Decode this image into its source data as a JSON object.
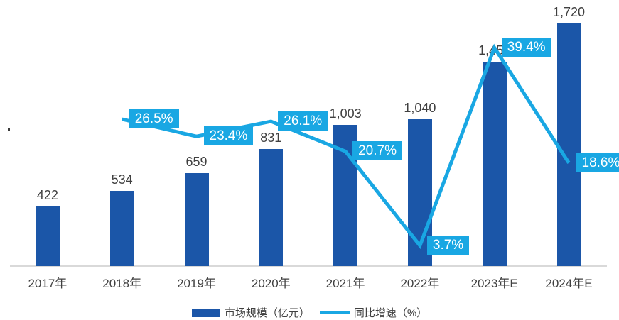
{
  "chart_data": {
    "type": "bar",
    "title": "",
    "xlabel": "",
    "ylabel": "",
    "categories": [
      "2017年",
      "2018年",
      "2019年",
      "2020年",
      "2021年",
      "2022年",
      "2023年E",
      "2024年E"
    ],
    "series": [
      {
        "name": "市场规模（亿元）",
        "type": "bar",
        "color": "#1B56A8",
        "values": [
          422,
          534,
          659,
          831,
          1003,
          1040,
          1450,
          1720
        ],
        "labels": [
          "422",
          "534",
          "659",
          "831",
          "1,003",
          "1,040",
          "1,450",
          "1,720"
        ]
      },
      {
        "name": "同比增速（%）",
        "type": "line",
        "color": "#19A7E3",
        "values": [
          null,
          26.5,
          23.4,
          26.1,
          20.7,
          3.7,
          39.4,
          18.6
        ],
        "labels": [
          null,
          "26.5%",
          "23.4%",
          "26.1%",
          "20.7%",
          "3.7%",
          "39.4%",
          "18.6%"
        ]
      }
    ],
    "y1lim": [
      0,
      1885
    ],
    "y2lim": [
      0,
      48
    ],
    "grid": false,
    "legend_position": "bottom",
    "value_label_color": "#404040",
    "axis_line_color": "#D9D9D9",
    "badge_text_color": "#FFFFFF"
  },
  "legend": {
    "items": [
      {
        "label": "市场规模（亿元）"
      },
      {
        "label": "同比增速（%）"
      }
    ]
  }
}
